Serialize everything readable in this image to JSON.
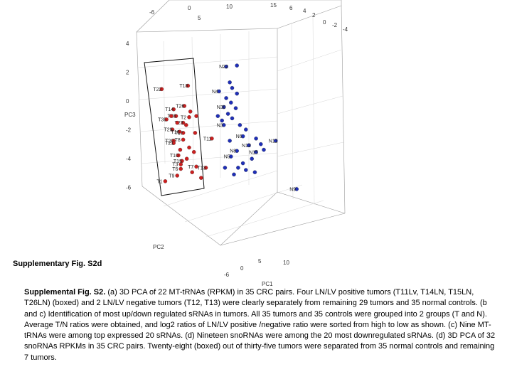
{
  "figure_label": "Supplementary Fig. S2d",
  "caption": {
    "lead": "Supplemental Fig. S2.",
    "text": " (a) 3D PCA of 22 MT-tRNAs (RPKM) in 35 CRC pairs. Four LN/LV positive tumors (T11Lv, T14LN, T15LN, T26LN) (boxed) and 2 LN/LV negative tumors (T12, T13) were clearly separately from remaining 29 tumors and 35 normal controls. (b and c) Identification of most up/down regulated sRNAs in tumors. All 35 tumors and 35 controls were grouped into 2 groups (T and N). Average T/N ratios were obtained, and log2 ratios of LN/LV positive /negative ratio were sorted from high to low as shown. (c) Nine MT-tRNAs were among top expressed 20 sRNAs. (d) Nineteen snoRNAs were among the 20 most downregulated sRNAs. (d) 3D PCA of 32 snoRNAs RPKMs in 35 CRC pairs. Twenty-eight (boxed) out of thirty-five tumors were separated from 35 normal controls and remaining 7 tumors."
  },
  "chart_data": {
    "type": "scatter",
    "projection": "3d",
    "axes": {
      "pc3_ticks": [
        "4",
        "2",
        "0",
        "-2",
        "-4",
        "-6"
      ],
      "pc3_label": "PC3",
      "pc2_ticks_top": [
        "-6",
        "0",
        "5",
        "10",
        "15"
      ],
      "pc2_label": "PC2",
      "pc1_ticks_top": [
        "6",
        "4",
        "2",
        "0",
        "-2",
        "-4"
      ],
      "pc1_ticks_bottom": [
        "-6",
        "0",
        "5",
        "10"
      ],
      "pc1_label": "PC1"
    },
    "colors": {
      "tumor": "#cc1f1f",
      "normal": "#1f2fb8",
      "box": "#111111"
    },
    "series": [
      {
        "name": "T",
        "points": [
          {
            "label": "T22",
            "u": 0.04,
            "v": 0.16
          },
          {
            "label": "T18",
            "u": 0.48,
            "v": 0.13
          },
          {
            "label": "T14",
            "u": 0.24,
            "v": 0.34
          },
          {
            "label": "T26",
            "u": 0.42,
            "v": 0.31
          },
          {
            "label": "T35",
            "u": 0.12,
            "v": 0.43
          },
          {
            "label": "T28",
            "u": 0.28,
            "v": 0.4
          },
          {
            "label": "T2",
            "u": 0.5,
            "v": 0.41
          },
          {
            "label": "T23",
            "u": 0.4,
            "v": 0.46
          },
          {
            "label": "T29",
            "u": 0.22,
            "v": 0.52
          },
          {
            "label": "T16",
            "u": 0.34,
            "v": 0.54
          },
          {
            "label": "T17",
            "u": 0.4,
            "v": 0.55
          },
          {
            "label": "T20",
            "u": 0.24,
            "v": 0.62
          },
          {
            "label": "T21",
            "u": 0.24,
            "v": 0.64
          },
          {
            "label": "T8",
            "u": 0.4,
            "v": 0.61
          },
          {
            "label": "T10",
            "u": 0.32,
            "v": 0.75
          },
          {
            "label": "T15",
            "u": 0.38,
            "v": 0.8
          },
          {
            "label": "T3",
            "u": 0.36,
            "v": 0.83
          },
          {
            "label": "T6",
            "u": 0.36,
            "v": 0.87
          },
          {
            "label": "T7",
            "u": 0.62,
            "v": 0.85
          },
          {
            "label": "T9",
            "u": 0.3,
            "v": 0.93
          },
          {
            "label": "T1",
            "u": 0.1,
            "v": 0.98
          },
          {
            "label": "T13",
            "u": 0.78,
            "v": 0.86
          },
          {
            "label": "T11",
            "u": 0.88,
            "v": 0.6
          },
          {
            "label": "",
            "u": 0.2,
            "v": 0.4
          },
          {
            "label": "",
            "u": 0.3,
            "v": 0.46
          },
          {
            "label": "",
            "u": 0.45,
            "v": 0.48
          },
          {
            "label": "",
            "u": 0.5,
            "v": 0.68
          },
          {
            "label": "",
            "u": 0.58,
            "v": 0.72
          },
          {
            "label": "",
            "u": 0.46,
            "v": 0.78
          },
          {
            "label": "",
            "u": 0.55,
            "v": 0.9
          },
          {
            "label": "",
            "u": 0.7,
            "v": 0.95
          },
          {
            "label": "",
            "u": 0.52,
            "v": 0.36
          },
          {
            "label": "",
            "u": 0.62,
            "v": 0.4
          },
          {
            "label": "",
            "u": 0.35,
            "v": 0.7
          },
          {
            "label": "",
            "u": 0.6,
            "v": 0.55
          }
        ]
      },
      {
        "name": "N",
        "points": [
          {
            "label": "N22",
            "u": 1.12,
            "v": -0.04
          },
          {
            "label": "N4",
            "u": 1.0,
            "v": 0.18
          },
          {
            "label": "N30",
            "u": 1.08,
            "v": 0.32
          },
          {
            "label": "N12",
            "u": 1.5,
            "v": 0.66
          },
          {
            "label": "N11",
            "u": 1.95,
            "v": 0.62
          },
          {
            "label": "N15",
            "u": 1.62,
            "v": 0.72
          },
          {
            "label": "N8",
            "u": 1.3,
            "v": 0.71
          },
          {
            "label": "N5",
            "u": 1.2,
            "v": 0.76
          },
          {
            "label": "N6",
            "u": 1.4,
            "v": 0.58
          },
          {
            "label": "N3",
            "u": 1.08,
            "v": 0.48
          },
          {
            "label": "N9",
            "u": 2.3,
            "v": 1.05
          },
          {
            "label": "",
            "u": 1.3,
            "v": -0.05
          },
          {
            "label": "",
            "u": 1.18,
            "v": 0.1
          },
          {
            "label": "",
            "u": 1.22,
            "v": 0.15
          },
          {
            "label": "",
            "u": 1.3,
            "v": 0.2
          },
          {
            "label": "",
            "u": 1.12,
            "v": 0.24
          },
          {
            "label": "",
            "u": 1.2,
            "v": 0.28
          },
          {
            "label": "",
            "u": 1.28,
            "v": 0.33
          },
          {
            "label": "",
            "u": 1.15,
            "v": 0.38
          },
          {
            "label": "",
            "u": 1.22,
            "v": 0.42
          },
          {
            "label": "",
            "u": 0.98,
            "v": 0.4
          },
          {
            "label": "",
            "u": 1.05,
            "v": 0.44
          },
          {
            "label": "",
            "u": 1.35,
            "v": 0.48
          },
          {
            "label": "",
            "u": 1.45,
            "v": 0.52
          },
          {
            "label": "",
            "u": 1.62,
            "v": 0.6
          },
          {
            "label": "",
            "u": 1.7,
            "v": 0.65
          },
          {
            "label": "",
            "u": 1.75,
            "v": 0.7
          },
          {
            "label": "",
            "u": 1.55,
            "v": 0.78
          },
          {
            "label": "",
            "u": 1.4,
            "v": 0.82
          },
          {
            "label": "",
            "u": 1.45,
            "v": 0.88
          },
          {
            "label": "",
            "u": 1.32,
            "v": 0.86
          },
          {
            "label": "",
            "u": 1.25,
            "v": 0.92
          },
          {
            "label": "",
            "u": 1.1,
            "v": 0.86
          },
          {
            "label": "",
            "u": 1.6,
            "v": 0.9
          },
          {
            "label": "",
            "u": 1.18,
            "v": 0.62
          }
        ]
      }
    ],
    "box_label": "boxed"
  }
}
